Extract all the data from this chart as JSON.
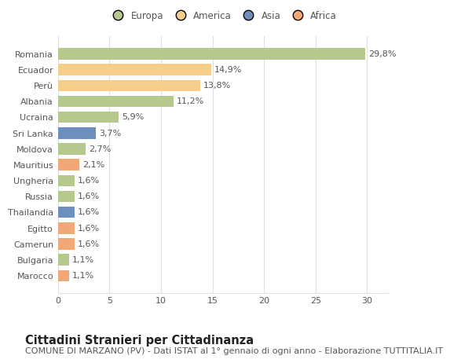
{
  "countries": [
    "Romania",
    "Ecuador",
    "Perù",
    "Albania",
    "Ucraina",
    "Sri Lanka",
    "Moldova",
    "Mauritius",
    "Ungheria",
    "Russia",
    "Thailandia",
    "Egitto",
    "Camerun",
    "Bulgaria",
    "Marocco"
  ],
  "values": [
    29.8,
    14.9,
    13.8,
    11.2,
    5.9,
    3.7,
    2.7,
    2.1,
    1.6,
    1.6,
    1.6,
    1.6,
    1.6,
    1.1,
    1.1
  ],
  "labels": [
    "29,8%",
    "14,9%",
    "13,8%",
    "11,2%",
    "5,9%",
    "3,7%",
    "2,7%",
    "2,1%",
    "1,6%",
    "1,6%",
    "1,6%",
    "1,6%",
    "1,6%",
    "1,1%",
    "1,1%"
  ],
  "colors": [
    "#b5c98e",
    "#f5cf89",
    "#f5cf89",
    "#b5c98e",
    "#b5c98e",
    "#6e8fbe",
    "#b5c98e",
    "#f0a878",
    "#b5c98e",
    "#b5c98e",
    "#6e8fbe",
    "#f0a878",
    "#f0a878",
    "#b5c98e",
    "#f0a878"
  ],
  "legend_labels": [
    "Europa",
    "America",
    "Asia",
    "Africa"
  ],
  "legend_colors": [
    "#b5c98e",
    "#f5cf89",
    "#6e8fbe",
    "#f0a878"
  ],
  "title": "Cittadini Stranieri per Cittadinanza",
  "subtitle": "COMUNE DI MARZANO (PV) - Dati ISTAT al 1° gennaio di ogni anno - Elaborazione TUTTITALIA.IT",
  "xlim": [
    0,
    32
  ],
  "xticks": [
    0,
    5,
    10,
    15,
    20,
    25,
    30
  ],
  "background_color": "#ffffff",
  "grid_color": "#e0e0e0",
  "bar_height": 0.72,
  "title_fontsize": 10.5,
  "subtitle_fontsize": 8,
  "label_fontsize": 8,
  "tick_fontsize": 8,
  "legend_fontsize": 8.5
}
